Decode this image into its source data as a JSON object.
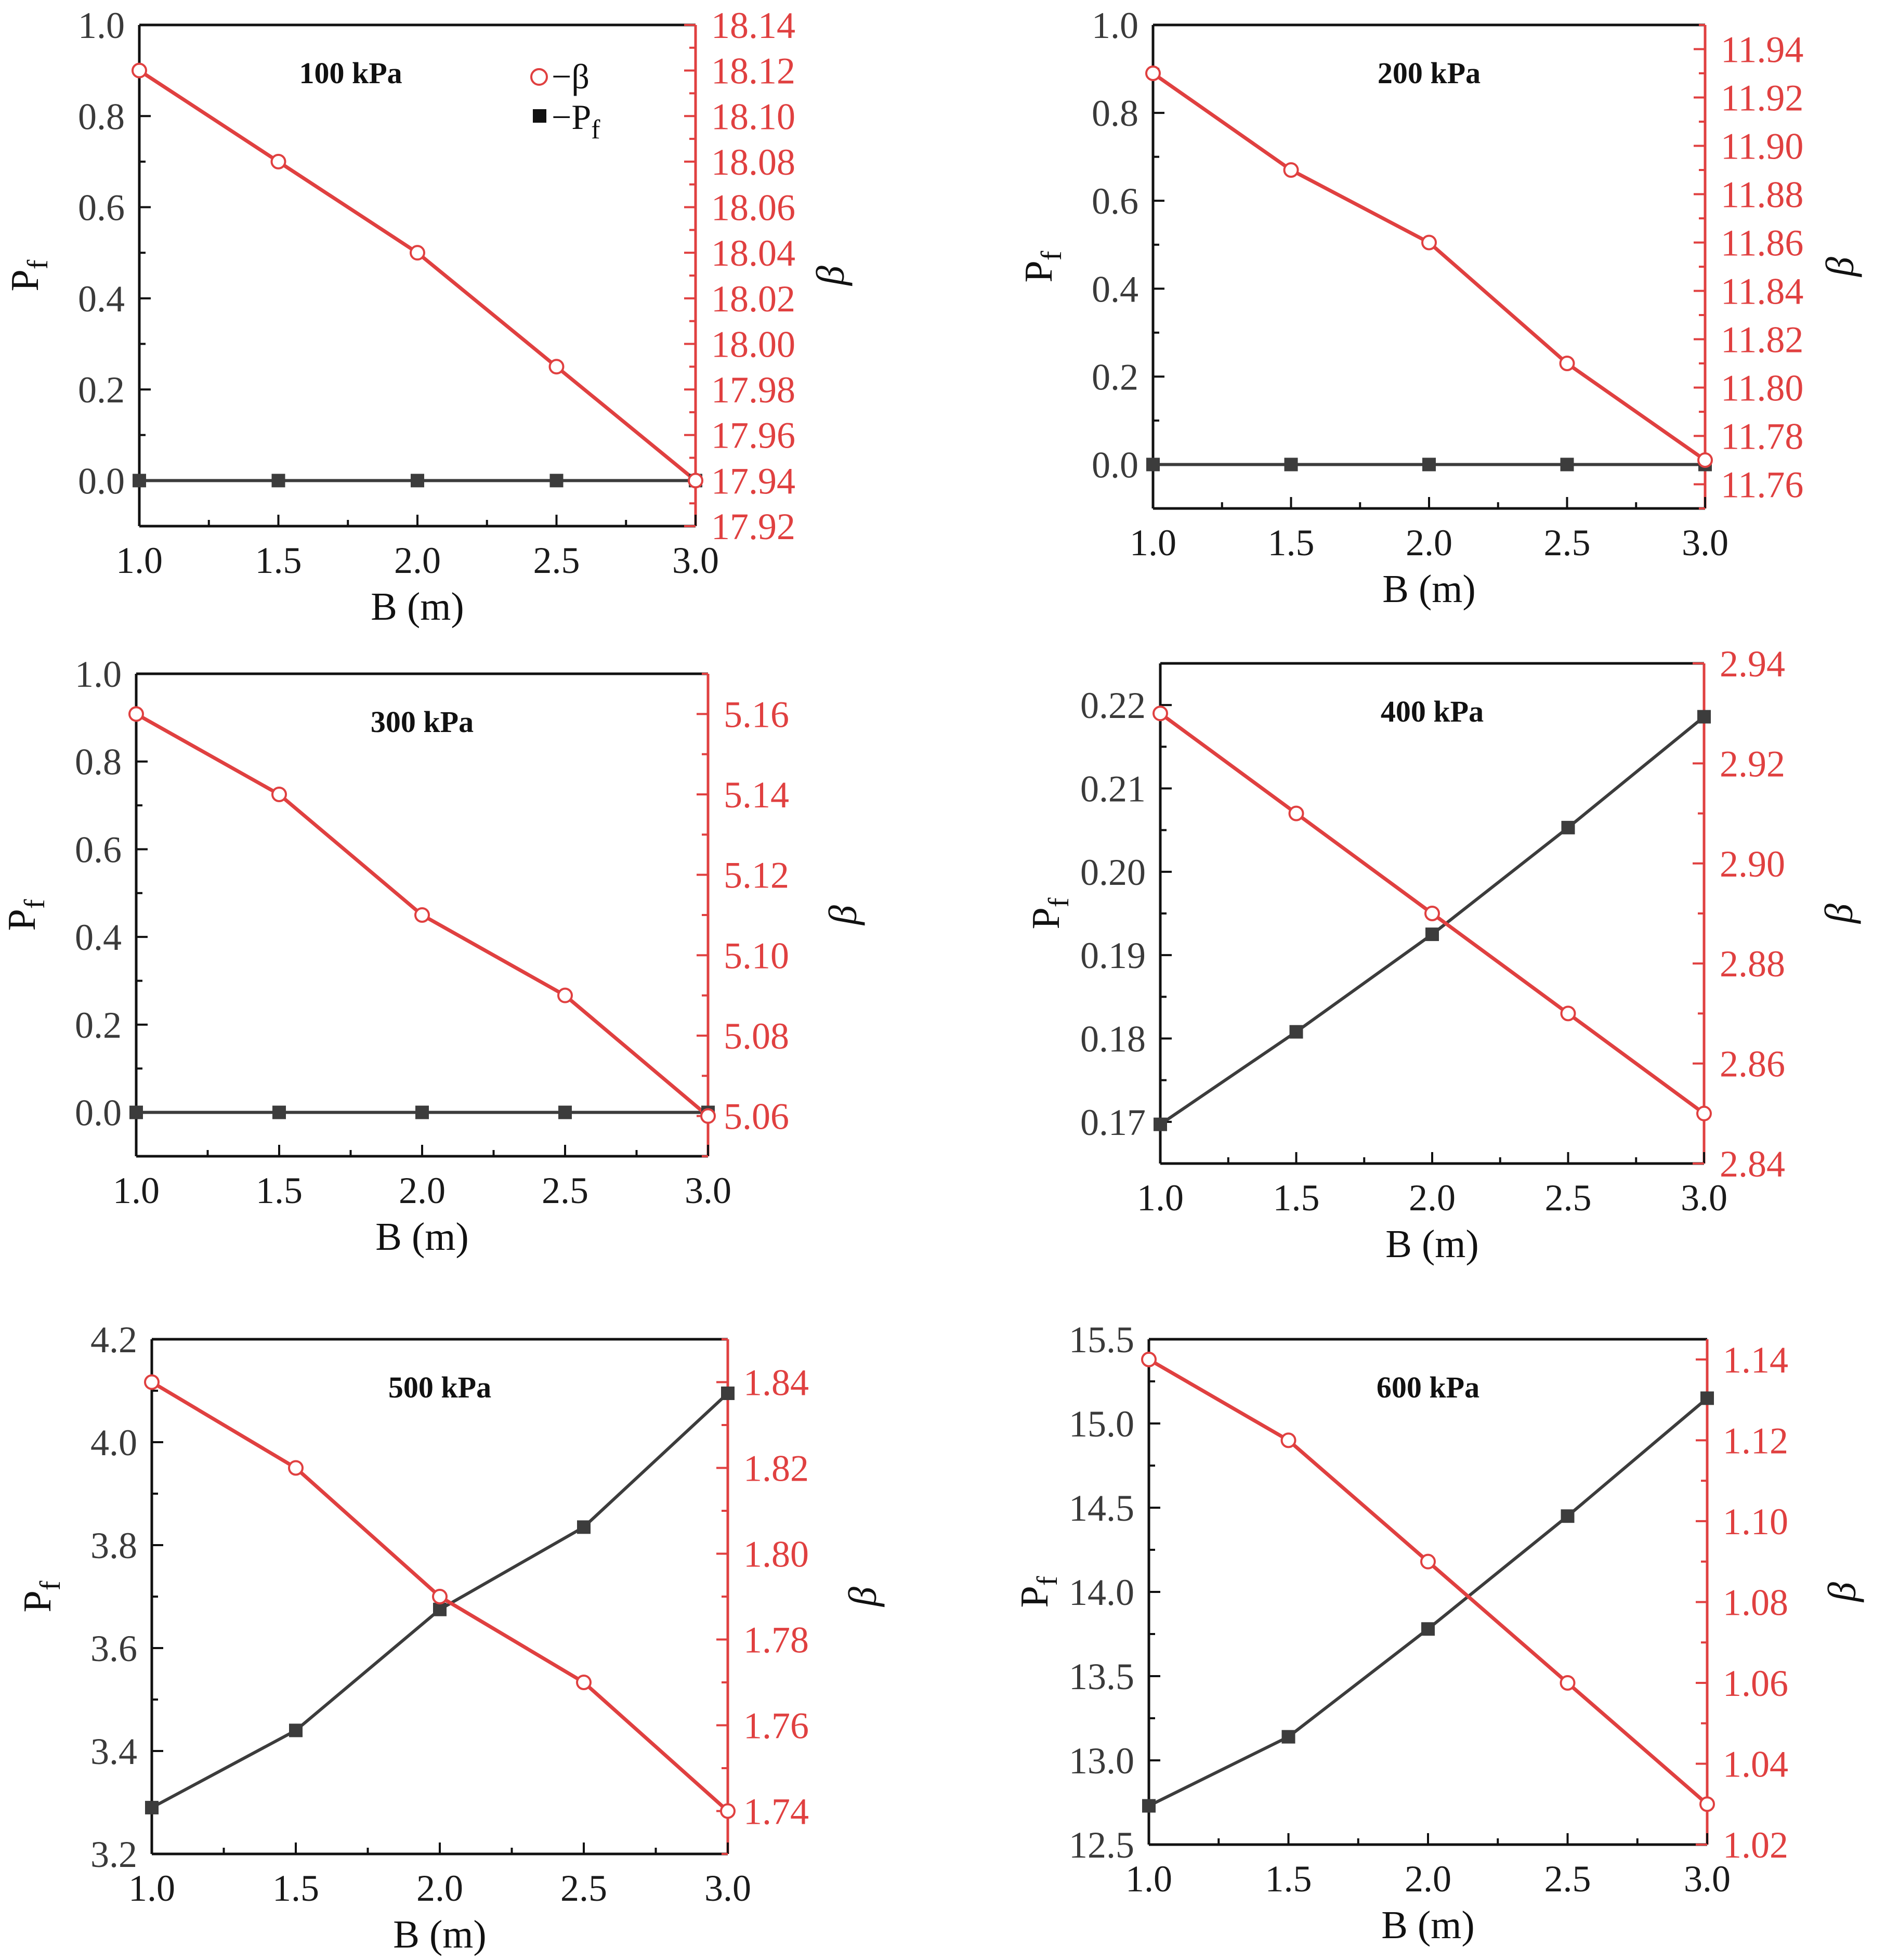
{
  "chart_data": [
    {
      "type": "line",
      "title": "100 kPa",
      "xlabel": "B (m)",
      "ylabel": "Pf",
      "y2label": "β",
      "x": [
        1.0,
        1.5,
        2.0,
        2.5,
        3.0
      ],
      "xlim": [
        1.0,
        3.0
      ],
      "xticks": [
        "1.0",
        "1.5",
        "2.0",
        "2.5",
        "3.0"
      ],
      "ylim": [
        -0.1,
        1.0
      ],
      "yticks": [
        "0.0",
        "0.2",
        "0.4",
        "0.6",
        "0.8",
        "1.0"
      ],
      "y2lim": [
        17.92,
        18.14
      ],
      "y2ticks": [
        "17.92",
        "17.94",
        "17.96",
        "17.98",
        "18.00",
        "18.02",
        "18.04",
        "18.06",
        "18.08",
        "18.10",
        "18.12",
        "18.14"
      ],
      "legend": {
        "position": "top-right",
        "beta": "−β",
        "pf_main": "−P",
        "pf_sub": "f"
      },
      "series": [
        {
          "name": "Pf",
          "axis": "left",
          "values": [
            0,
            0,
            0,
            0,
            0
          ]
        },
        {
          "name": "β",
          "axis": "right",
          "values": [
            18.12,
            18.08,
            18.04,
            17.99,
            17.94
          ]
        }
      ]
    },
    {
      "type": "line",
      "title": "200 kPa",
      "xlabel": "B (m)",
      "ylabel": "Pf",
      "y2label": "β",
      "x": [
        1.0,
        1.5,
        2.0,
        2.5,
        3.0
      ],
      "xlim": [
        1.0,
        3.0
      ],
      "xticks": [
        "1.0",
        "1.5",
        "2.0",
        "2.5",
        "3.0"
      ],
      "ylim": [
        -0.1,
        1.0
      ],
      "yticks": [
        "0.0",
        "0.2",
        "0.4",
        "0.6",
        "0.8",
        "1.0"
      ],
      "y2lim": [
        11.75,
        11.95
      ],
      "y2ticks": [
        "11.76",
        "11.78",
        "11.80",
        "11.82",
        "11.84",
        "11.86",
        "11.88",
        "11.90",
        "11.92",
        "11.94"
      ],
      "series": [
        {
          "name": "Pf",
          "axis": "left",
          "values": [
            0,
            0,
            0,
            0,
            0
          ]
        },
        {
          "name": "β",
          "axis": "right",
          "values": [
            11.93,
            11.89,
            11.86,
            11.81,
            11.77
          ]
        }
      ]
    },
    {
      "type": "line",
      "title": "300 kPa",
      "xlabel": "B (m)",
      "ylabel": "Pf",
      "y2label": "β",
      "x": [
        1.0,
        1.5,
        2.0,
        2.5,
        3.0
      ],
      "xlim": [
        1.0,
        3.0
      ],
      "xticks": [
        "1.0",
        "1.5",
        "2.0",
        "2.5",
        "3.0"
      ],
      "ylim": [
        -0.1,
        1.0
      ],
      "yticks": [
        "0.0",
        "0.2",
        "0.4",
        "0.6",
        "0.8",
        "1.0"
      ],
      "y2lim": [
        5.05,
        5.17
      ],
      "y2ticks": [
        "5.06",
        "5.08",
        "5.10",
        "5.12",
        "5.14",
        "5.16"
      ],
      "series": [
        {
          "name": "Pf",
          "axis": "left",
          "values": [
            0,
            0,
            0,
            0,
            0
          ]
        },
        {
          "name": "β",
          "axis": "right",
          "values": [
            5.16,
            5.14,
            5.11,
            5.09,
            5.06
          ]
        }
      ]
    },
    {
      "type": "line",
      "title": "400 kPa",
      "xlabel": "B (m)",
      "ylabel": "Pf",
      "y2label": "β",
      "x": [
        1.0,
        1.5,
        2.0,
        2.5,
        3.0
      ],
      "xlim": [
        1.0,
        3.0
      ],
      "xticks": [
        "1.0",
        "1.5",
        "2.0",
        "2.5",
        "3.0"
      ],
      "ylim": [
        0.165,
        0.225
      ],
      "yticks": [
        "0.17",
        "0.18",
        "0.19",
        "0.20",
        "0.21",
        "0.22"
      ],
      "y2lim": [
        2.84,
        2.94
      ],
      "y2ticks": [
        "2.84",
        "2.86",
        "2.88",
        "2.90",
        "2.92",
        "2.94"
      ],
      "series": [
        {
          "name": "Pf",
          "axis": "left",
          "values": [
            0.1697,
            0.1808,
            0.1925,
            0.2053,
            0.2186
          ]
        },
        {
          "name": "β",
          "axis": "right",
          "values": [
            2.93,
            2.91,
            2.89,
            2.87,
            2.85
          ]
        }
      ]
    },
    {
      "type": "line",
      "title": "500 kPa",
      "xlabel": "B (m)",
      "ylabel": "Pf",
      "y2label": "β",
      "x": [
        1.0,
        1.5,
        2.0,
        2.5,
        3.0
      ],
      "xlim": [
        1.0,
        3.0
      ],
      "xticks": [
        "1.0",
        "1.5",
        "2.0",
        "2.5",
        "3.0"
      ],
      "ylim": [
        3.2,
        4.2
      ],
      "yticks": [
        "3.2",
        "3.4",
        "3.6",
        "3.8",
        "4.0",
        "4.2"
      ],
      "y2lim": [
        1.73,
        1.85
      ],
      "y2ticks": [
        "1.74",
        "1.76",
        "1.78",
        "1.80",
        "1.82",
        "1.84"
      ],
      "series": [
        {
          "name": "Pf",
          "axis": "left",
          "values": [
            3.29,
            3.44,
            3.675,
            3.835,
            4.095
          ]
        },
        {
          "name": "β",
          "axis": "right",
          "values": [
            1.84,
            1.82,
            1.79,
            1.77,
            1.74
          ]
        }
      ]
    },
    {
      "type": "line",
      "title": "600 kPa",
      "xlabel": "B (m)",
      "ylabel": "Pf",
      "y2label": "β",
      "x": [
        1.0,
        1.5,
        2.0,
        2.5,
        3.0
      ],
      "xlim": [
        1.0,
        3.0
      ],
      "xticks": [
        "1.0",
        "1.5",
        "2.0",
        "2.5",
        "3.0"
      ],
      "ylim": [
        12.5,
        15.5
      ],
      "yticks": [
        "12.5",
        "13.0",
        "13.5",
        "14.0",
        "14.5",
        "15.0",
        "15.5"
      ],
      "y2lim": [
        1.02,
        1.145
      ],
      "y2ticks": [
        "1.02",
        "1.04",
        "1.06",
        "1.08",
        "1.10",
        "1.12",
        "1.14"
      ],
      "series": [
        {
          "name": "Pf",
          "axis": "left",
          "values": [
            12.73,
            13.14,
            13.78,
            14.45,
            15.15
          ]
        },
        {
          "name": "β",
          "axis": "right",
          "values": [
            1.14,
            1.12,
            1.09,
            1.06,
            1.03
          ]
        }
      ]
    }
  ]
}
